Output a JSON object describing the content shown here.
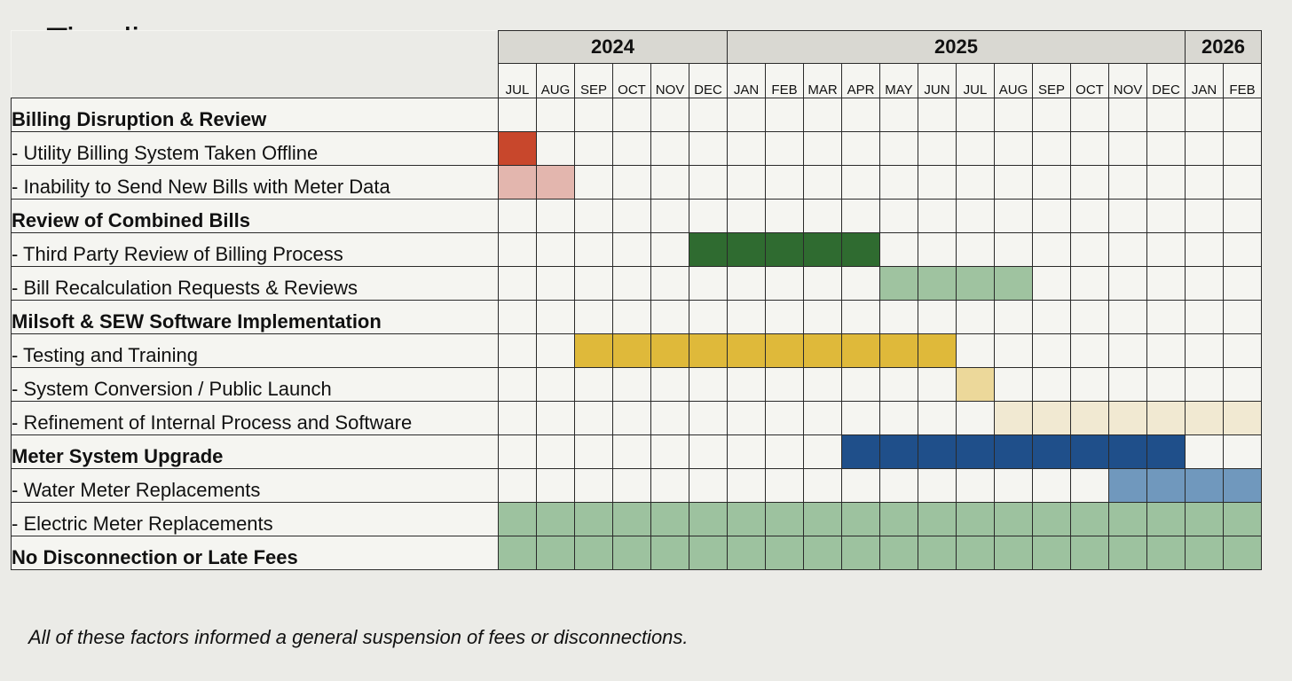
{
  "title": "Timeline",
  "years": [
    {
      "label": "2024",
      "span": 6
    },
    {
      "label": "2025",
      "span": 12
    },
    {
      "label": "2026",
      "span": 2
    }
  ],
  "months": [
    "JUL",
    "AUG",
    "SEP",
    "OCT",
    "NOV",
    "DEC",
    "JAN",
    "FEB",
    "MAR",
    "APR",
    "MAY",
    "JUN",
    "JUL",
    "AUG",
    "SEP",
    "OCT",
    "NOV",
    "DEC",
    "JAN",
    "FEB"
  ],
  "rows": [
    {
      "label": "Billing Disruption & Review",
      "heading": true,
      "bar": null
    },
    {
      "label": "- Utility Billing System Taken Offline",
      "heading": false,
      "bar": {
        "start": "JUL 2024",
        "end": "JUL 2024",
        "color": "#c8472c"
      }
    },
    {
      "label": "- Inability to Send New Bills with Meter Data",
      "heading": false,
      "bar": {
        "start": "JUL 2024",
        "end": "AUG 2024",
        "color": "#e3b6ae"
      }
    },
    {
      "label": "Review of Combined Bills",
      "heading": true,
      "bar": null
    },
    {
      "label": "- Third Party Review of Billing Process",
      "heading": false,
      "bar": {
        "start": "DEC 2024",
        "end": "APR 2025",
        "color": "#2f6b30"
      }
    },
    {
      "label": "- Bill Recalculation Requests & Reviews",
      "heading": false,
      "bar": {
        "start": "MAY 2025",
        "end": "AUG 2025",
        "color": "#9fc3a0"
      }
    },
    {
      "label": "Milsoft & SEW Software Implementation",
      "heading": true,
      "bar": null
    },
    {
      "label": "- Testing and Training",
      "heading": false,
      "bar": {
        "start": "SEP 2024",
        "end": "JUN 2025",
        "color": "#dfb93a"
      }
    },
    {
      "label": "- System Conversion / Public Launch",
      "heading": false,
      "bar": {
        "start": "JUL 2025",
        "end": "JUL 2025",
        "color": "#ecd89a"
      }
    },
    {
      "label": "- Refinement of Internal Process and Software",
      "heading": false,
      "bar": {
        "start": "AUG 2025",
        "end": "FEB 2026",
        "color": "#f1e9d2"
      }
    },
    {
      "label": "Meter System Upgrade",
      "heading": true,
      "bar": {
        "start": "APR 2025",
        "end": "DEC 2025",
        "color": "#1f4f8a"
      }
    },
    {
      "label": "- Water Meter Replacements",
      "heading": false,
      "bar": {
        "start": "NOV 2025",
        "end": "FEB 2026",
        "color": "#7098bd"
      }
    },
    {
      "label": "- Electric Meter Replacements",
      "heading": false,
      "bar": {
        "start": "JUL 2024",
        "end": "FEB 2026",
        "color": "#9dc29f"
      }
    },
    {
      "label": "No Disconnection or Late Fees",
      "heading": true,
      "bar": {
        "start": "JUL 2024",
        "end": "FEB 2026",
        "color": "#9dc29f"
      }
    }
  ],
  "footnote": "All of these factors informed a general suspension of fees or disconnections."
}
